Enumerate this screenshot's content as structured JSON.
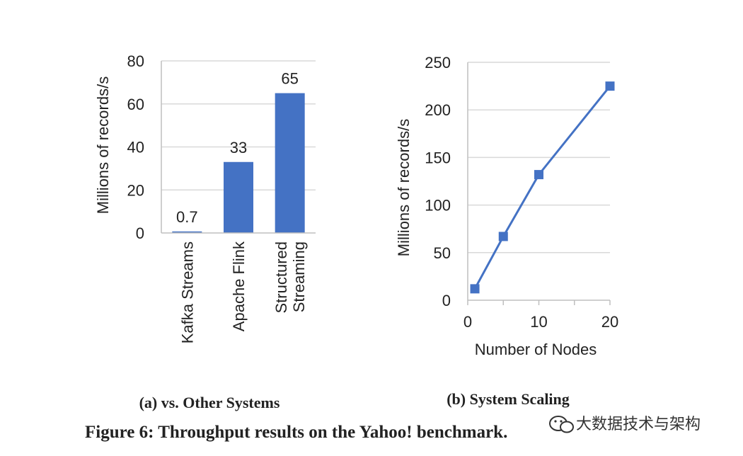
{
  "chart_data": [
    {
      "type": "bar",
      "subcaption": "(a) vs. Other Systems",
      "ylabel": "Millions of records/s",
      "xlabel": "",
      "categories": [
        "Kafka Streams",
        "Apache Flink",
        "Structured Streaming"
      ],
      "category_lines": [
        [
          "Kafka Streams"
        ],
        [
          "Apache Flink"
        ],
        [
          "Structured",
          "Streaming"
        ]
      ],
      "values": [
        0.7,
        33,
        65
      ],
      "data_labels": [
        "0.7",
        "33",
        "65"
      ],
      "ylim": [
        0,
        80
      ],
      "yticks": [
        0,
        20,
        40,
        60,
        80
      ],
      "grid": true,
      "color": "#4472C4"
    },
    {
      "type": "line",
      "subcaption": "(b) System Scaling",
      "xlabel": "Number of Nodes",
      "ylabel": "Millions of records/s",
      "x": [
        1,
        5,
        10,
        20
      ],
      "y": [
        12,
        67,
        132,
        225
      ],
      "xlim": [
        0,
        20
      ],
      "ylim": [
        0,
        250
      ],
      "xticks": [
        0,
        10,
        20
      ],
      "yticks": [
        0,
        50,
        100,
        150,
        200,
        250
      ],
      "grid": true,
      "color": "#4472C4",
      "marker": "square"
    }
  ],
  "figure_caption": "Figure 6: Throughput results on the Yahoo! benchmark.",
  "watermark": {
    "text": "大数据技术与架构",
    "icon": "wechat-icon"
  }
}
